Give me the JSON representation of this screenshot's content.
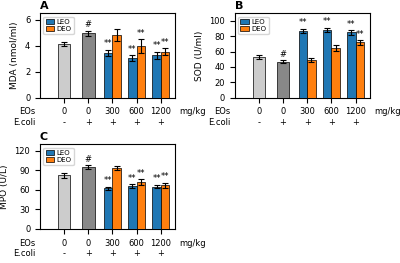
{
  "chart_data": [
    {
      "type": "bar",
      "title": "A",
      "y_label": "MDA (nmol/ml)",
      "categories": [
        "0\n-",
        "0\n+",
        "300\n+",
        "600\n+",
        "1200\n+"
      ],
      "ylim": [
        0,
        6.5
      ],
      "yticks": [
        0,
        2,
        4,
        6
      ],
      "legend": "upper left",
      "annotations": [
        "EOs",
        "E.coli",
        "mg/kg"
      ],
      "series": [
        {
          "name": "LEO",
          "color": "#1f77b4",
          "colors": [
            "#cccccc",
            "#888888",
            "#1f77b4",
            "#1f77b4",
            "#1f77b4"
          ],
          "values": [
            4.15,
            4.95,
            3.45,
            3.05,
            3.25
          ],
          "errors": [
            0.15,
            0.2,
            0.25,
            0.2,
            0.3
          ],
          "annotations": [
            null,
            "#",
            "**",
            "**",
            "**"
          ]
        },
        {
          "name": "DEO",
          "color": "#ff7f0e",
          "values": [
            null,
            null,
            4.8,
            3.95,
            3.55
          ],
          "errors": [
            null,
            null,
            0.45,
            0.55,
            0.25
          ],
          "annotations": [
            null,
            null,
            null,
            "**",
            "**"
          ]
        }
      ]
    },
    {
      "type": "bar",
      "title": "B",
      "y_label": "SOD (U/ml)",
      "categories": [
        "0\n-",
        "0\n+",
        "300\n+",
        "600\n+",
        "1200\n+"
      ],
      "ylim": [
        0,
        110
      ],
      "yticks": [
        0,
        20,
        40,
        60,
        80,
        100
      ],
      "legend": "upper left",
      "annotations": [
        "EOs",
        "E.coli",
        "mg/kg"
      ],
      "series": [
        {
          "name": "LEO",
          "color": "#1f77b4",
          "colors": [
            "#cccccc",
            "#888888",
            "#1f77b4",
            "#1f77b4",
            "#1f77b4"
          ],
          "values": [
            53,
            47,
            87,
            88,
            85
          ],
          "errors": [
            2,
            2,
            3,
            3,
            3
          ],
          "annotations": [
            null,
            "#",
            "**",
            "**",
            "**"
          ]
        },
        {
          "name": "DEO",
          "color": "#ff7f0e",
          "values": [
            null,
            null,
            49,
            65,
            72
          ],
          "errors": [
            null,
            null,
            3,
            4,
            3
          ],
          "annotations": [
            null,
            null,
            null,
            null,
            "**"
          ]
        }
      ]
    },
    {
      "type": "bar",
      "title": "C",
      "y_label": "MPO (U/L)",
      "categories": [
        "0\n-",
        "0\n+",
        "300\n+",
        "600\n+",
        "1200\n+"
      ],
      "ylim": [
        0,
        130
      ],
      "yticks": [
        0,
        30,
        60,
        90,
        120
      ],
      "legend": "upper left",
      "annotations": [
        "EOs",
        "E.coli",
        "mg/kg"
      ],
      "series": [
        {
          "name": "LEO",
          "color": "#1f77b4",
          "colors": [
            "#cccccc",
            "#888888",
            "#1f77b4",
            "#1f77b4",
            "#1f77b4"
          ],
          "values": [
            82,
            95,
            62,
            66,
            65
          ],
          "errors": [
            4,
            3,
            3,
            3,
            3
          ],
          "annotations": [
            null,
            "#",
            "**",
            "**",
            "**"
          ]
        },
        {
          "name": "DEO",
          "color": "#ff7f0e",
          "values": [
            null,
            null,
            93,
            72,
            67
          ],
          "errors": [
            null,
            null,
            3,
            4,
            4
          ],
          "annotations": [
            null,
            null,
            null,
            "**",
            "**"
          ]
        }
      ]
    }
  ]
}
